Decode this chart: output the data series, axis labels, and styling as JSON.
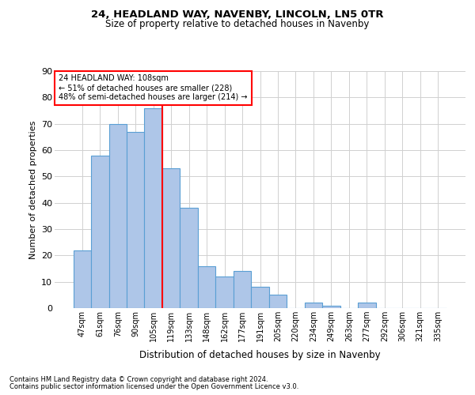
{
  "title1": "24, HEADLAND WAY, NAVENBY, LINCOLN, LN5 0TR",
  "title2": "Size of property relative to detached houses in Navenby",
  "xlabel": "Distribution of detached houses by size in Navenby",
  "ylabel": "Number of detached properties",
  "footnote1": "Contains HM Land Registry data © Crown copyright and database right 2024.",
  "footnote2": "Contains public sector information licensed under the Open Government Licence v3.0.",
  "annotation_line1": "24 HEADLAND WAY: 108sqm",
  "annotation_line2": "← 51% of detached houses are smaller (228)",
  "annotation_line3": "48% of semi-detached houses are larger (214) →",
  "bar_labels": [
    "47sqm",
    "61sqm",
    "76sqm",
    "90sqm",
    "105sqm",
    "119sqm",
    "133sqm",
    "148sqm",
    "162sqm",
    "177sqm",
    "191sqm",
    "205sqm",
    "220sqm",
    "234sqm",
    "249sqm",
    "263sqm",
    "277sqm",
    "292sqm",
    "306sqm",
    "321sqm",
    "335sqm"
  ],
  "bar_values": [
    22,
    58,
    70,
    67,
    76,
    53,
    38,
    16,
    12,
    14,
    8,
    5,
    0,
    2,
    1,
    0,
    2,
    0,
    0,
    0,
    0
  ],
  "bar_color": "#aec6e8",
  "bar_edge_color": "#5a9fd4",
  "vline_x": 4.5,
  "vline_color": "red",
  "ylim": [
    0,
    90
  ],
  "yticks": [
    0,
    10,
    20,
    30,
    40,
    50,
    60,
    70,
    80,
    90
  ],
  "bg_color": "#ffffff",
  "grid_color": "#d0d0d0"
}
